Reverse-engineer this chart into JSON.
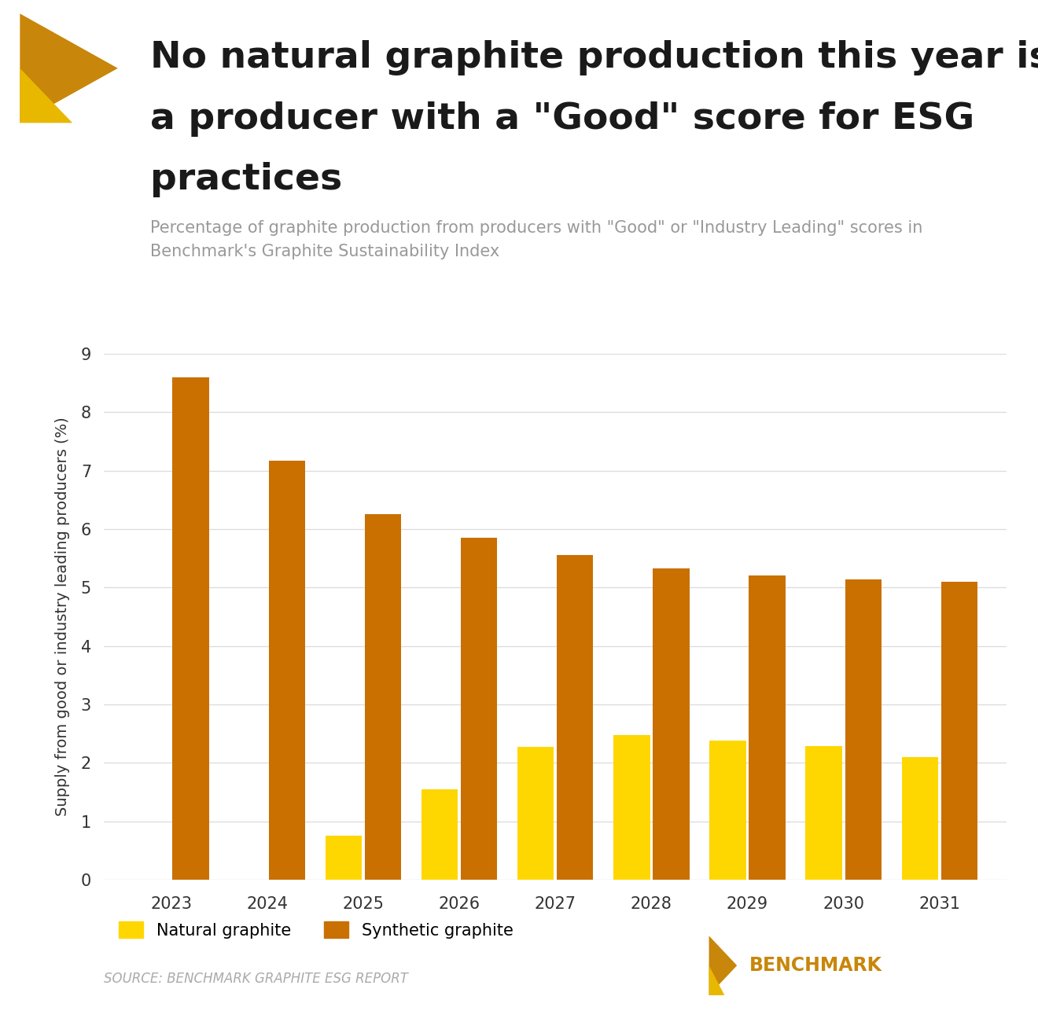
{
  "title_line1": "No natural graphite production this year is from",
  "title_line2": "a producer with a \"Good\" score for ESG",
  "title_line3": "practices",
  "subtitle": "Percentage of graphite production from producers with \"Good\" or \"Industry Leading\" scores in\nBenchmark's Graphite Sustainability Index",
  "years": [
    2023,
    2024,
    2025,
    2026,
    2027,
    2028,
    2029,
    2030,
    2031
  ],
  "natural_graphite": [
    0,
    0,
    0.75,
    1.55,
    2.27,
    2.48,
    2.38,
    2.28,
    2.1
  ],
  "synthetic_graphite": [
    8.6,
    7.17,
    6.25,
    5.85,
    5.55,
    5.33,
    5.2,
    5.14,
    5.1
  ],
  "natural_color": "#FFD700",
  "synthetic_color": "#C97000",
  "ylabel": "Supply from good or industry leading producers (%)",
  "ylim": [
    0,
    9
  ],
  "yticks": [
    0,
    1,
    2,
    3,
    4,
    5,
    6,
    7,
    8,
    9
  ],
  "source_text": "SOURCE: BENCHMARK GRAPHITE ESG REPORT",
  "legend_natural": "Natural graphite",
  "legend_synthetic": "Synthetic graphite",
  "background_color": "#ffffff",
  "grid_color": "#dddddd",
  "title_fontsize": 34,
  "subtitle_fontsize": 15,
  "ylabel_fontsize": 14,
  "tick_fontsize": 15,
  "bar_width": 0.38,
  "bar_gap": 0.03
}
